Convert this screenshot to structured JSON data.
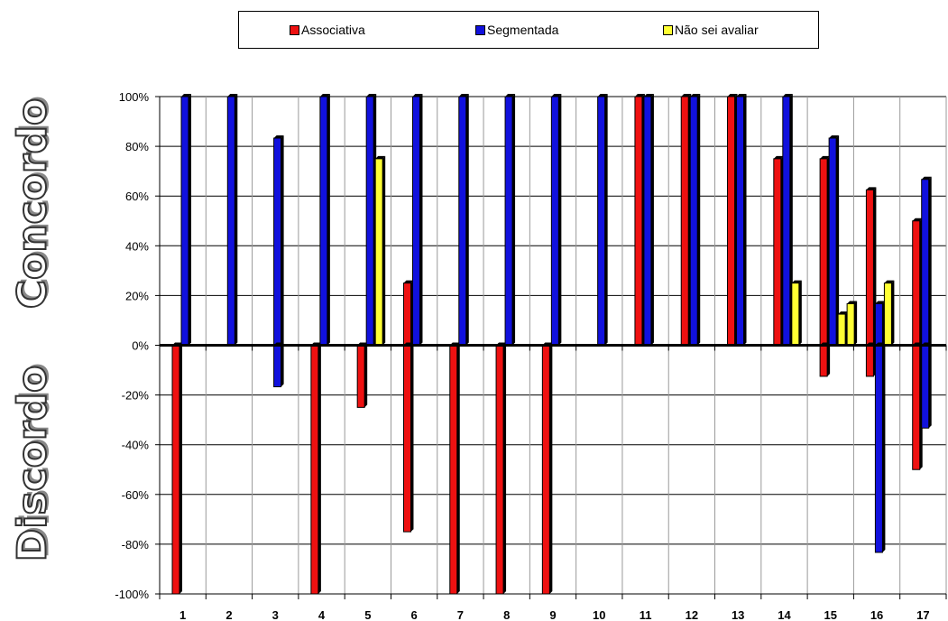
{
  "legend": {
    "items": [
      {
        "label": "Associativa",
        "color": "#ee1111"
      },
      {
        "label": "Segmentada",
        "color": "#1111dd"
      },
      {
        "label": "Não sei avaliar",
        "color": "#ffff33"
      }
    ]
  },
  "side_labels": {
    "top": "Concordo",
    "bottom": "Discordo"
  },
  "chart_data": {
    "type": "bar",
    "categories": [
      "1",
      "2",
      "3",
      "4",
      "5",
      "6",
      "7",
      "8",
      "9",
      "10",
      "11",
      "12",
      "13",
      "14",
      "15",
      "16",
      "17"
    ],
    "ylim": [
      -100,
      100
    ],
    "yticks": [
      -100,
      -80,
      -60,
      -40,
      -20,
      0,
      20,
      40,
      60,
      80,
      100
    ],
    "ytick_labels": [
      "-100%",
      "-80%",
      "-60%",
      "-40%",
      "-20%",
      "0%",
      "20%",
      "40%",
      "60%",
      "80%",
      "100%"
    ],
    "grid": "vertical and horizontal",
    "legend_position": "top",
    "series": [
      {
        "name": "Associativa",
        "color": "#ee1111",
        "agree": [
          0,
          0,
          0,
          0,
          0,
          25,
          0,
          0,
          0,
          0,
          100,
          100,
          100,
          75,
          75,
          62.5,
          50
        ],
        "disagree": [
          -100,
          0,
          0,
          -100,
          -25,
          -75,
          -100,
          -100,
          -100,
          0,
          0,
          0,
          0,
          0,
          -12.5,
          -12.5,
          -50
        ]
      },
      {
        "name": "Segmentada",
        "color": "#1111dd",
        "agree": [
          100,
          100,
          83.3,
          100,
          100,
          100,
          100,
          100,
          100,
          100,
          100,
          100,
          100,
          100,
          83.3,
          16.7,
          66.7
        ],
        "disagree": [
          0,
          0,
          -16.7,
          0,
          0,
          0,
          0,
          0,
          0,
          0,
          0,
          0,
          0,
          0,
          0,
          -83.3,
          -33.3
        ]
      },
      {
        "name": "Não sei avaliar",
        "color": "#ffff33",
        "agree": [
          0,
          0,
          0,
          0,
          75,
          0,
          0,
          0,
          0,
          0,
          0,
          0,
          0,
          25,
          12.5,
          25,
          0
        ],
        "disagree": [
          0,
          0,
          0,
          0,
          0,
          0,
          0,
          0,
          0,
          0,
          0,
          0,
          0,
          0,
          0,
          0,
          0
        ]
      }
    ],
    "extra_agree_bars": [
      {
        "category": "15",
        "series": "Não sei avaliar",
        "value": 16.7
      }
    ]
  }
}
